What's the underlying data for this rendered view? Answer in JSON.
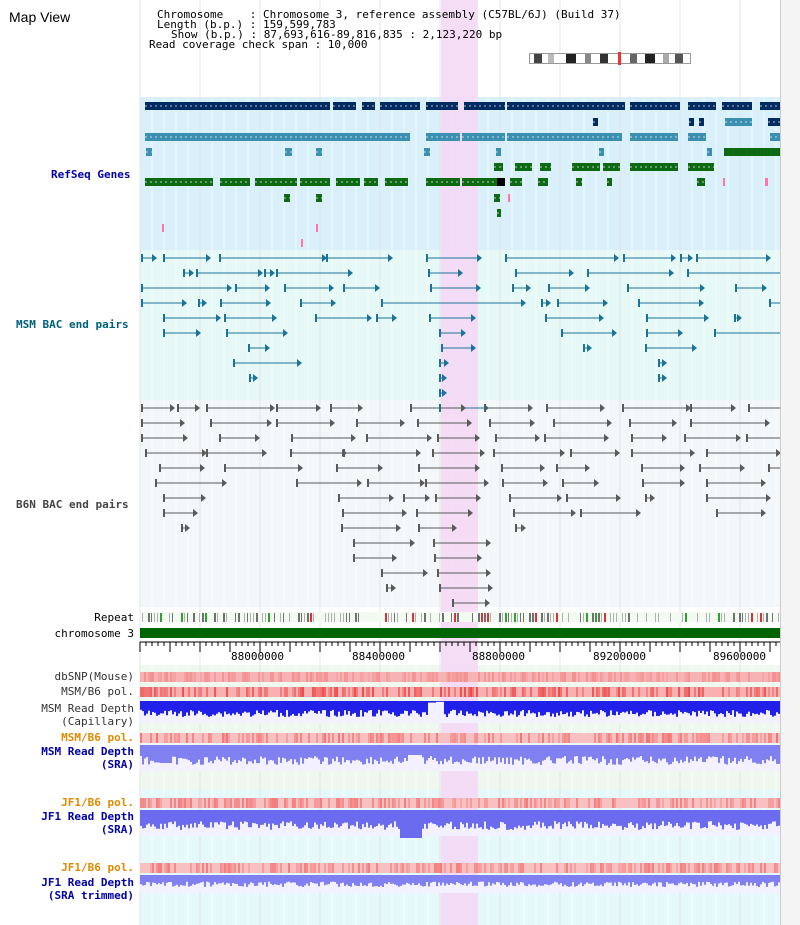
{
  "app": {
    "title": "Map View"
  },
  "info": {
    "chromosome_line": "Chromosome    : Chromosome 3, reference assembly (C57BL/6J) (Build 37)",
    "length_line": "Length (b.p.) : 159,599,783",
    "show_line": "Show (b.p.) : 87,693,616-89,816,835 : 2,123,220 bp",
    "span_line": "Read coverage check span : 10,000"
  },
  "tracks": {
    "refseq": "RefSeq Genes",
    "msm_bac": "MSM BAC end pairs",
    "b6n_bac": "B6N BAC end pairs",
    "repeat": "Repeat",
    "chromosome": "chromosome 3",
    "dbsnp": "dbSNP(Mouse)",
    "msm_b6_pol_1": "MSM/B6 pol.",
    "msm_read_depth_cap_1": "MSM Read Depth",
    "msm_read_depth_cap_2": "(Capillary)",
    "msm_b6_pol_2": "MSM/B6 pol.",
    "msm_read_depth_sra_1": "MSM Read Depth",
    "msm_read_depth_sra_2": "(SRA)",
    "jf1_b6_pol_1": "JF1/B6 pol.",
    "jf1_read_depth_sra_1": "JF1 Read Depth",
    "jf1_read_depth_sra_2": "(SRA)",
    "jf1_b6_pol_2": "JF1/B6 pol.",
    "jf1_read_depth_trim_1": "JF1 Read Depth",
    "jf1_read_depth_trim_2": "(SRA trimmed)"
  },
  "axis": {
    "ticks": [
      "88000000",
      "88400000",
      "88800000",
      "89200000",
      "89600000"
    ]
  },
  "colors": {
    "refseq_bg": "#d9f0fa",
    "msm_bg": "#e6f9f7",
    "b6n_bg": "#f4f7f9",
    "highlight": "#f5d7f5",
    "navy": "#002a62",
    "teal": "#3b8fb0",
    "green": "#0e6a12",
    "chromosome_bar": "#006400",
    "label_blue": "#0000aa",
    "label_orange": "#e08a00",
    "label_teal": "#00607a"
  }
}
